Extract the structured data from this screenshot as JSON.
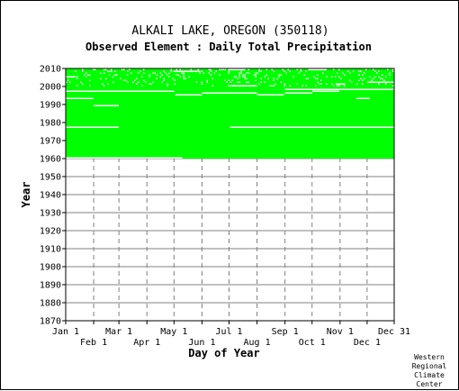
{
  "chart_data": {
    "type": "heatmap",
    "title": "ALKALI LAKE, OREGON   (350118)",
    "subtitle": "Observed Element : Daily Total Precipitation",
    "xlabel": "Day of Year",
    "ylabel": "Year",
    "xlim": [
      1,
      365
    ],
    "ylim": [
      1870,
      2010
    ],
    "y_ticks": [
      1870,
      1880,
      1890,
      1900,
      1910,
      1920,
      1930,
      1940,
      1950,
      1960,
      1970,
      1980,
      1990,
      2000,
      2010
    ],
    "x_ticks_top_row": [
      {
        "label": "Jan 1",
        "day": 1
      },
      {
        "label": "Mar 1",
        "day": 60
      },
      {
        "label": "May 1",
        "day": 121
      },
      {
        "label": "Jul 1",
        "day": 182
      },
      {
        "label": "Sep 1",
        "day": 244
      },
      {
        "label": "Nov 1",
        "day": 305
      },
      {
        "label": "Dec 31",
        "day": 365
      }
    ],
    "x_ticks_bottom_row": [
      {
        "label": "Feb 1",
        "day": 32
      },
      {
        "label": "Apr 1",
        "day": 91
      },
      {
        "label": "Jun 1",
        "day": 152
      },
      {
        "label": "Aug 1",
        "day": 213
      },
      {
        "label": "Oct 1",
        "day": 274
      },
      {
        "label": "Dec 1",
        "day": 335
      }
    ],
    "grid": true,
    "data_color": "#00ff00",
    "coverage": {
      "start_year": 1960,
      "end_year": 2010,
      "full_record_years": [
        1960,
        2009
      ]
    },
    "missing_segments": [
      {
        "year": 1960,
        "day_start": 1,
        "day_end": 130
      },
      {
        "year": 1977,
        "day_start": 1,
        "day_end": 60
      },
      {
        "year": 1977,
        "day_start": 183,
        "day_end": 365
      },
      {
        "year": 1989,
        "day_start": 32,
        "day_end": 60
      },
      {
        "year": 1993,
        "day_start": 1,
        "day_end": 32
      },
      {
        "year": 1993,
        "day_start": 323,
        "day_end": 338
      },
      {
        "year": 1995,
        "day_start": 122,
        "day_end": 152
      },
      {
        "year": 1995,
        "day_start": 213,
        "day_end": 243
      },
      {
        "year": 1996,
        "day_start": 152,
        "day_end": 213
      },
      {
        "year": 1996,
        "day_start": 244,
        "day_end": 274
      },
      {
        "year": 1997,
        "day_start": 1,
        "day_end": 60
      },
      {
        "year": 1997,
        "day_start": 60,
        "day_end": 121
      },
      {
        "year": 1997,
        "day_start": 274,
        "day_end": 304
      },
      {
        "year": 1998,
        "day_start": 244,
        "day_end": 365
      },
      {
        "year": 2000,
        "day_start": 183,
        "day_end": 213
      },
      {
        "year": 2001,
        "day_start": 300,
        "day_end": 310
      },
      {
        "year": 2002,
        "day_start": 335,
        "day_end": 365
      },
      {
        "year": 2005,
        "day_start": 1,
        "day_end": 12
      },
      {
        "year": 2008,
        "day_start": 120,
        "day_end": 150
      },
      {
        "year": 2009,
        "day_start": 182,
        "day_end": 200
      },
      {
        "year": 2009,
        "day_start": 270,
        "day_end": 290
      }
    ],
    "speckle_years": [
      2000,
      2010
    ],
    "speckle_fraction": 0.09
  },
  "credit": {
    "lines": [
      "Western",
      "Regional",
      "Climate",
      "Center"
    ]
  }
}
